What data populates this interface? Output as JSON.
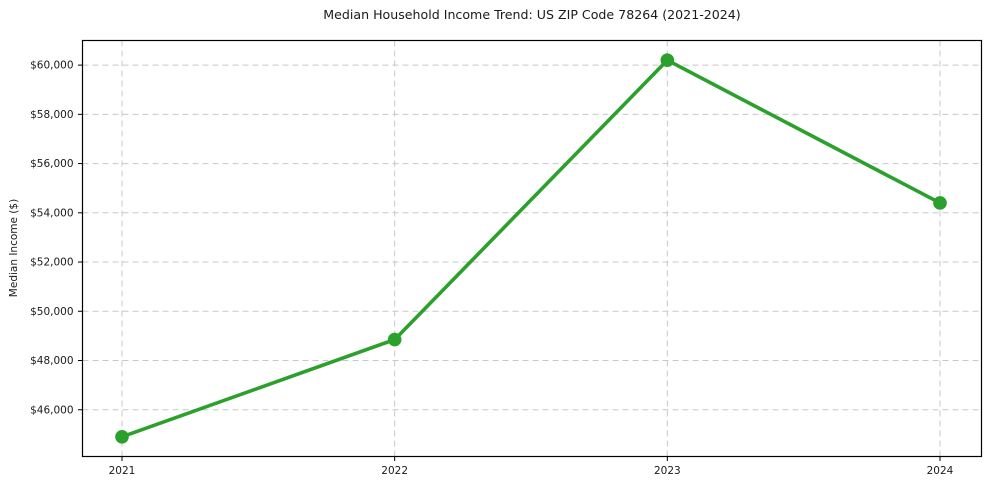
{
  "page": {
    "title": "Median Household Income Trend: US ZIP Code 78264 (2021-2024)"
  },
  "chart_data": {
    "type": "line",
    "title": "Median Household Income Trend: US ZIP Code 78264 (2021-2024)",
    "xlabel": "",
    "ylabel": "Median Income ($)",
    "categories": [
      "2021",
      "2022",
      "2023",
      "2024"
    ],
    "values": [
      44900,
      48850,
      60200,
      54400
    ],
    "value_labels": [
      "$44,900",
      "$48,850",
      "$60,200",
      "$54,400"
    ],
    "y_ticks": [
      46000,
      48000,
      50000,
      52000,
      54000,
      56000,
      58000,
      60000
    ],
    "y_tick_labels": [
      "$46,000",
      "$48,000",
      "$50,000",
      "$52,000",
      "$54,000",
      "$56,000",
      "$58,000",
      "$60,000"
    ],
    "ylim": [
      44100,
      61000
    ],
    "grid": true,
    "grid_style": "dashed",
    "legend": false,
    "marker": "circle",
    "colors": {
      "line": "#2ca02c",
      "marker": "#2ca02c",
      "grid": "#c8c8c8",
      "spine": "#000000",
      "text": "#1a1a1a",
      "background": "#ffffff"
    }
  }
}
